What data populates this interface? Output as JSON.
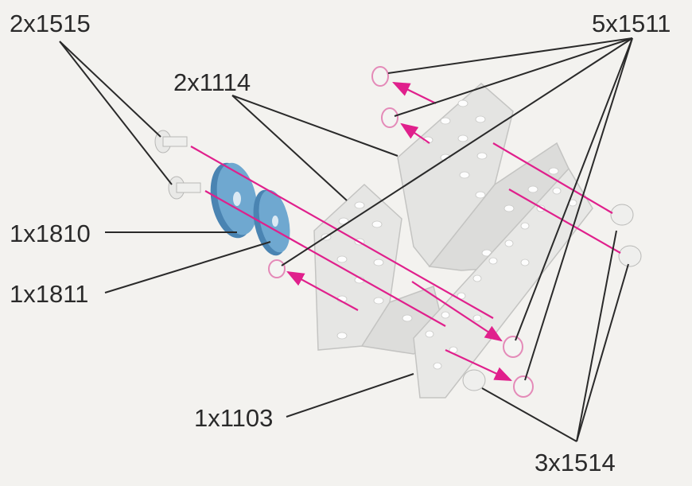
{
  "labels": {
    "bolts_long": "2x1515",
    "nuts": "5x1511",
    "angle_plates": "2x1114",
    "gear_large": "1x1810",
    "gear_small": "1x1811",
    "flat_plate": "1x1103",
    "bolts_short": "3x1514"
  },
  "colors": {
    "background": "#f3f2ef",
    "plate_fill": "#e4e4e2",
    "plate_edge": "#c4c4c2",
    "hole": "#fdfdfd",
    "arrow": "#e0208c",
    "gear": "#6fa8d0",
    "gear_dark": "#4a84b2",
    "leader": "#2a2a2a",
    "text": "#2a2a2a"
  }
}
